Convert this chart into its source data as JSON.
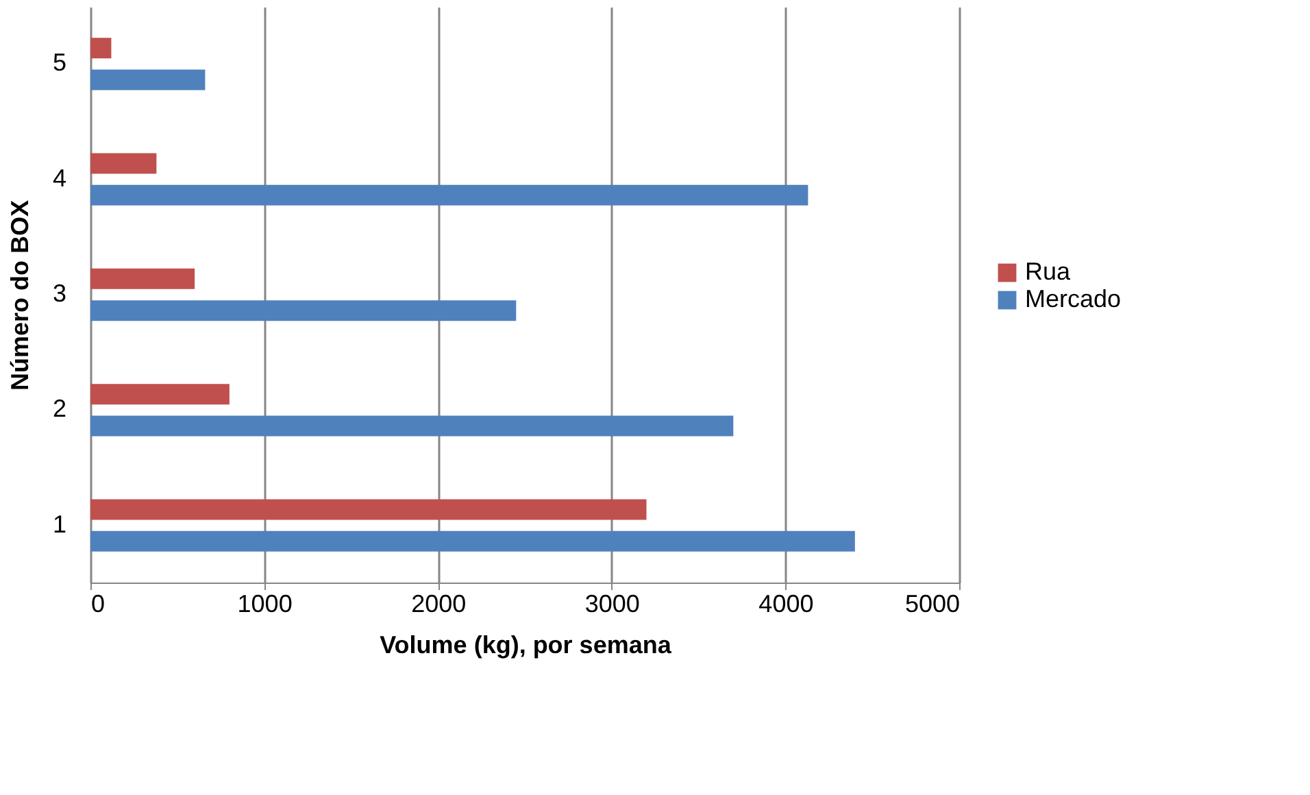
{
  "chart_data": {
    "type": "bar",
    "orientation": "horizontal",
    "xlabel": "Volume (kg), por semana",
    "ylabel": "Número do BOX",
    "categories": [
      "5",
      "4",
      "3",
      "2",
      "1"
    ],
    "series": [
      {
        "name": "Rua",
        "color": "#c0504d",
        "values": [
          120,
          380,
          600,
          800,
          3200
        ]
      },
      {
        "name": "Mercado",
        "color": "#4f81bd",
        "values": [
          660,
          4130,
          2450,
          3700,
          4400
        ]
      }
    ],
    "xlim": [
      0,
      5000
    ],
    "xticks": [
      0,
      1000,
      2000,
      3000,
      4000,
      5000
    ],
    "grid": "x",
    "legend": "right"
  }
}
